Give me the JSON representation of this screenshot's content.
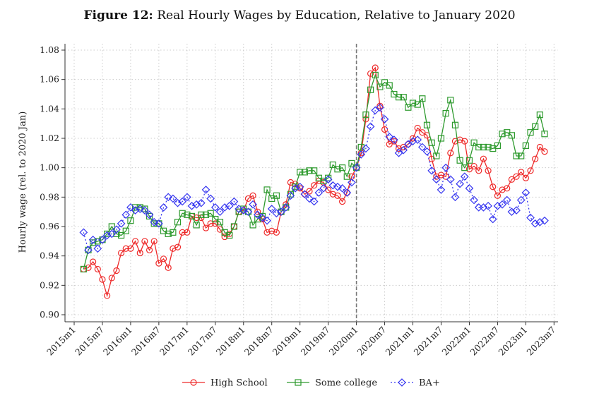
{
  "chart_data": {
    "type": "line",
    "title_prefix": "Figure 12:",
    "title": "Real Hourly Wages by Education, Relative to January 2020",
    "xlabel": "",
    "ylabel": "Hourly wage (rel. to 2020 Jan)",
    "ylim": [
      0.9,
      1.08
    ],
    "yticks": [
      "0.90",
      "0.92",
      "0.94",
      "0.96",
      "0.98",
      "1.00",
      "1.02",
      "1.04",
      "1.06",
      "1.08"
    ],
    "xticks": [
      "2015m1",
      "2015m7",
      "2016m1",
      "2016m7",
      "2017m1",
      "2017m7",
      "2018m1",
      "2018m7",
      "2019m1",
      "2019m7",
      "2020m1",
      "2020m7",
      "2021m1",
      "2021m7",
      "2022m1",
      "2022m7",
      "2023m1",
      "2023m7"
    ],
    "x_start": "2015m3",
    "x_start_index": 2,
    "reference_line": "2020m1",
    "grid": true,
    "legend_placement": "bottom",
    "series": [
      {
        "name": "High School",
        "color": "#ee2a2a",
        "marker": "circle",
        "line": "solid",
        "values": [
          0.931,
          0.932,
          0.936,
          0.931,
          0.924,
          0.913,
          0.925,
          0.93,
          0.942,
          0.945,
          0.945,
          0.95,
          0.942,
          0.95,
          0.944,
          0.95,
          0.935,
          0.938,
          0.932,
          0.945,
          0.946,
          0.956,
          0.956,
          0.967,
          0.966,
          0.966,
          0.959,
          0.962,
          0.962,
          0.958,
          0.953,
          0.955,
          0.96,
          0.97,
          0.971,
          0.979,
          0.981,
          0.97,
          0.965,
          0.956,
          0.957,
          0.956,
          0.97,
          0.975,
          0.99,
          0.989,
          0.986,
          0.982,
          0.984,
          0.988,
          0.991,
          0.99,
          0.985,
          0.982,
          0.981,
          0.977,
          0.983,
          0.994,
          1.0,
          1.01,
          1.033,
          1.064,
          1.068,
          1.042,
          1.026,
          1.016,
          1.018,
          1.013,
          1.014,
          1.016,
          1.02,
          1.027,
          1.024,
          1.022,
          1.006,
          0.994,
          0.995,
          0.994,
          1.01,
          1.018,
          1.019,
          1.018,
          0.999,
          1.001,
          0.998,
          1.006,
          0.998,
          0.987,
          0.981,
          0.985,
          0.986,
          0.992,
          0.994,
          0.997,
          0.993,
          0.998,
          1.006,
          1.014,
          1.011
        ]
      },
      {
        "name": "Some college",
        "color": "#2e9a2e",
        "marker": "square",
        "line": "solid",
        "values": [
          0.931,
          0.944,
          0.949,
          0.95,
          0.951,
          0.955,
          0.96,
          0.955,
          0.954,
          0.957,
          0.964,
          0.973,
          0.973,
          0.972,
          0.967,
          0.962,
          0.962,
          0.957,
          0.955,
          0.956,
          0.963,
          0.969,
          0.968,
          0.967,
          0.961,
          0.968,
          0.968,
          0.969,
          0.965,
          0.963,
          0.956,
          0.954,
          0.96,
          0.97,
          0.972,
          0.97,
          0.961,
          0.965,
          0.967,
          0.985,
          0.979,
          0.981,
          0.97,
          0.973,
          0.982,
          0.987,
          0.997,
          0.997,
          0.998,
          0.998,
          0.993,
          0.991,
          0.993,
          1.002,
          0.999,
          1.0,
          0.994,
          1.003,
          1.0,
          1.014,
          1.036,
          1.053,
          1.063,
          1.055,
          1.058,
          1.056,
          1.05,
          1.048,
          1.048,
          1.041,
          1.044,
          1.043,
          1.047,
          1.029,
          1.017,
          1.008,
          1.02,
          1.037,
          1.046,
          1.029,
          1.005,
          1.0,
          1.005,
          1.017,
          1.014,
          1.014,
          1.014,
          1.013,
          1.015,
          1.023,
          1.024,
          1.022,
          1.008,
          1.008,
          1.015,
          1.024,
          1.028,
          1.036,
          1.023
        ]
      },
      {
        "name": "BA+",
        "color": "#3535f0",
        "marker": "diamond",
        "line": "dotted",
        "values": [
          0.956,
          0.944,
          0.951,
          0.945,
          0.951,
          0.954,
          0.955,
          0.958,
          0.962,
          0.968,
          0.973,
          0.971,
          0.972,
          0.971,
          0.968,
          0.963,
          0.962,
          0.973,
          0.98,
          0.979,
          0.976,
          0.977,
          0.98,
          0.974,
          0.975,
          0.976,
          0.985,
          0.979,
          0.973,
          0.97,
          0.973,
          0.974,
          0.977,
          0.972,
          0.971,
          0.97,
          0.975,
          0.968,
          0.966,
          0.964,
          0.972,
          0.969,
          0.97,
          0.973,
          0.981,
          0.986,
          0.987,
          0.982,
          0.979,
          0.977,
          0.983,
          0.986,
          0.992,
          0.988,
          0.987,
          0.986,
          0.983,
          0.99,
          1.0,
          1.009,
          1.013,
          1.028,
          1.039,
          1.041,
          1.033,
          1.021,
          1.019,
          1.01,
          1.012,
          1.016,
          1.018,
          1.019,
          1.014,
          1.011,
          0.998,
          0.992,
          0.985,
          1.0,
          0.992,
          0.98,
          0.989,
          0.994,
          0.986,
          0.978,
          0.973,
          0.973,
          0.974,
          0.965,
          0.974,
          0.975,
          0.978,
          0.97,
          0.971,
          0.978,
          0.983,
          0.966,
          0.962,
          0.963,
          0.964
        ]
      }
    ]
  }
}
